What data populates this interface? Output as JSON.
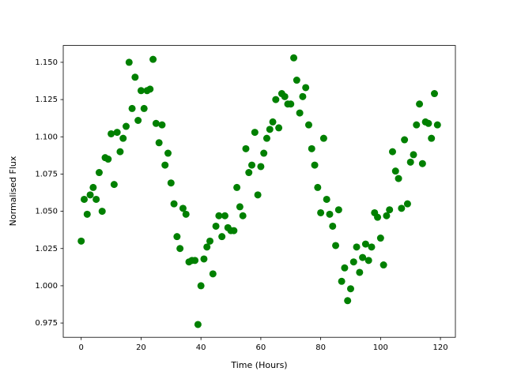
{
  "chart_data": {
    "type": "scatter",
    "x_label": "Time (Hours)",
    "y_label": "Normalised Flux",
    "color": "#008000",
    "x": [
      0,
      1,
      2,
      3,
      4,
      5,
      6,
      7,
      8,
      9,
      10,
      11,
      12,
      13,
      14,
      15,
      16,
      17,
      18,
      19,
      20,
      21,
      22,
      23,
      24,
      25,
      26,
      27,
      28,
      29,
      30,
      31,
      32,
      33,
      34,
      35,
      36,
      37,
      38,
      39,
      40,
      41,
      42,
      43,
      44,
      45,
      46,
      47,
      48,
      49,
      50,
      51,
      52,
      53,
      54,
      55,
      56,
      57,
      58,
      59,
      60,
      61,
      62,
      63,
      64,
      65,
      66,
      67,
      68,
      69,
      70,
      71,
      72,
      73,
      74,
      75,
      76,
      77,
      78,
      79,
      80,
      81,
      82,
      83,
      84,
      85,
      86,
      87,
      88,
      89,
      90,
      91,
      92,
      93,
      94,
      95,
      96,
      97,
      98,
      99,
      100,
      101,
      102,
      103,
      104,
      105,
      106,
      107,
      108,
      109,
      110,
      111,
      112,
      113,
      114,
      115,
      116,
      117,
      118,
      119
    ],
    "values": [
      1.03,
      1.058,
      1.048,
      1.061,
      1.066,
      1.058,
      1.076,
      1.05,
      1.086,
      1.085,
      1.102,
      1.068,
      1.103,
      1.09,
      1.099,
      1.107,
      1.15,
      1.119,
      1.14,
      1.111,
      1.131,
      1.119,
      1.131,
      1.132,
      1.152,
      1.109,
      1.096,
      1.108,
      1.081,
      1.089,
      1.069,
      1.055,
      1.033,
      1.025,
      1.052,
      1.048,
      1.016,
      1.017,
      1.017,
      0.974,
      1.0,
      1.018,
      1.026,
      1.03,
      1.008,
      1.04,
      1.047,
      1.033,
      1.047,
      1.039,
      1.037,
      1.037,
      1.066,
      1.053,
      1.047,
      1.092,
      1.076,
      1.081,
      1.103,
      1.061,
      1.08,
      1.089,
      1.099,
      1.105,
      1.11,
      1.125,
      1.106,
      1.129,
      1.127,
      1.122,
      1.122,
      1.153,
      1.138,
      1.116,
      1.127,
      1.133,
      1.108,
      1.092,
      1.081,
      1.066,
      1.049,
      1.099,
      1.058,
      1.048,
      1.04,
      1.027,
      1.051,
      1.003,
      1.012,
      0.99,
      0.998,
      1.016,
      1.026,
      1.009,
      1.019,
      1.028,
      1.017,
      1.026,
      1.049,
      1.046,
      1.032,
      1.014,
      1.047,
      1.051,
      1.09,
      1.077,
      1.072,
      1.052,
      1.098,
      1.055,
      1.083,
      1.088,
      1.108,
      1.122,
      1.082,
      1.11,
      1.109,
      1.099,
      1.129,
      1.108
    ],
    "xlim": [
      -6,
      125
    ],
    "xticks": [
      0,
      20,
      40,
      60,
      80,
      100,
      120
    ],
    "ylim": [
      0.9654,
      1.1613
    ],
    "yticks": [
      0.975,
      {
        "value": 1.0,
        "label": "1.000"
      },
      1.025,
      {
        "value": 1.05,
        "label": "1.050"
      },
      1.075,
      {
        "value": 1.1,
        "label": "1.100"
      },
      1.125,
      {
        "value": 1.15,
        "label": "1.150"
      }
    ]
  }
}
